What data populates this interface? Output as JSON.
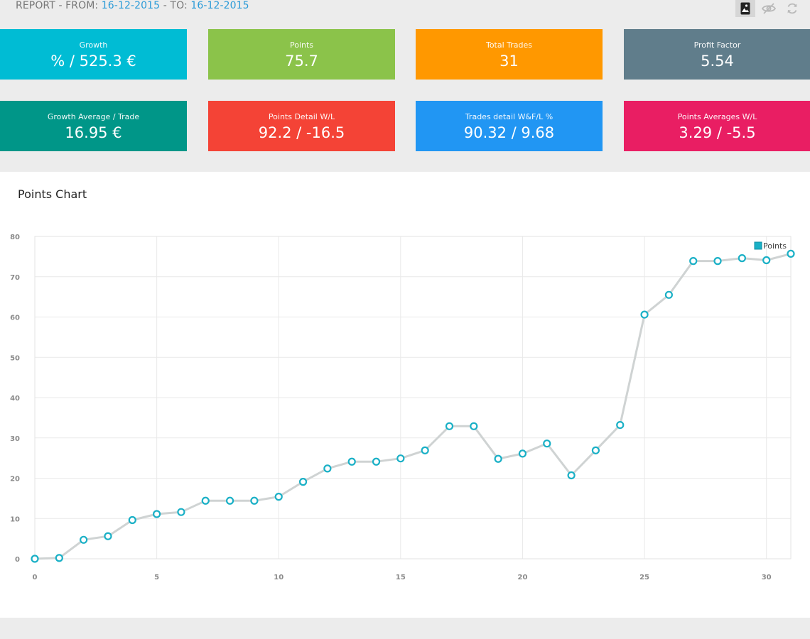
{
  "report": {
    "prefix": "REPORT - FROM: ",
    "from_date": "16-12-2015",
    "middle": " - TO: ",
    "to_date": "16-12-2015"
  },
  "toolbar": {
    "icons": [
      "image-icon",
      "eye-off-icon",
      "refresh-icon"
    ]
  },
  "cards": [
    {
      "label": "Growth",
      "value": "% / 525.3 €",
      "color": "#00bcd4"
    },
    {
      "label": "Points",
      "value": "75.7",
      "color": "#8bc34a"
    },
    {
      "label": "Total Trades",
      "value": "31",
      "color": "#ff9800"
    },
    {
      "label": "Profit Factor",
      "value": "5.54",
      "color": "#607d8b"
    },
    {
      "label": "Growth Average / Trade",
      "value": "16.95 €",
      "color": "#009688"
    },
    {
      "label": "Points Detail W/L",
      "value": "92.2 / -16.5",
      "color": "#f44336"
    },
    {
      "label": "Trades detail W&F/L %",
      "value": "90.32 / 9.68",
      "color": "#2196f3"
    },
    {
      "label": "Points Averages W/L",
      "value": "3.29 / -5.5",
      "color": "#e91e63"
    }
  ],
  "panel": {
    "title": "Points Chart"
  },
  "chart_data": {
    "type": "line",
    "title": "Points Chart",
    "xlabel": "",
    "ylabel": "",
    "x": [
      0,
      1,
      2,
      3,
      4,
      5,
      6,
      7,
      8,
      9,
      10,
      11,
      12,
      13,
      14,
      15,
      16,
      17,
      18,
      19,
      20,
      21,
      22,
      23,
      24,
      25,
      26,
      27,
      28,
      29,
      30,
      31
    ],
    "series": [
      {
        "name": "Points",
        "color": "#1ab0c6",
        "values": [
          0,
          0.2,
          4.7,
          5.6,
          9.6,
          11.1,
          11.6,
          14.4,
          14.4,
          14.4,
          15.4,
          19.1,
          22.4,
          24.1,
          24.1,
          24.9,
          26.9,
          32.9,
          32.9,
          24.8,
          26.1,
          28.6,
          20.7,
          26.9,
          33.2,
          60.6,
          65.5,
          73.9,
          73.9,
          74.6,
          74.1,
          75.7
        ]
      }
    ],
    "xlim": [
      0,
      31
    ],
    "ylim": [
      0,
      80
    ],
    "x_ticks": [
      0,
      5,
      10,
      15,
      20,
      25,
      30
    ],
    "y_ticks": [
      0,
      10,
      20,
      30,
      40,
      50,
      60,
      70,
      80
    ],
    "grid": true,
    "legend": "top-right"
  }
}
